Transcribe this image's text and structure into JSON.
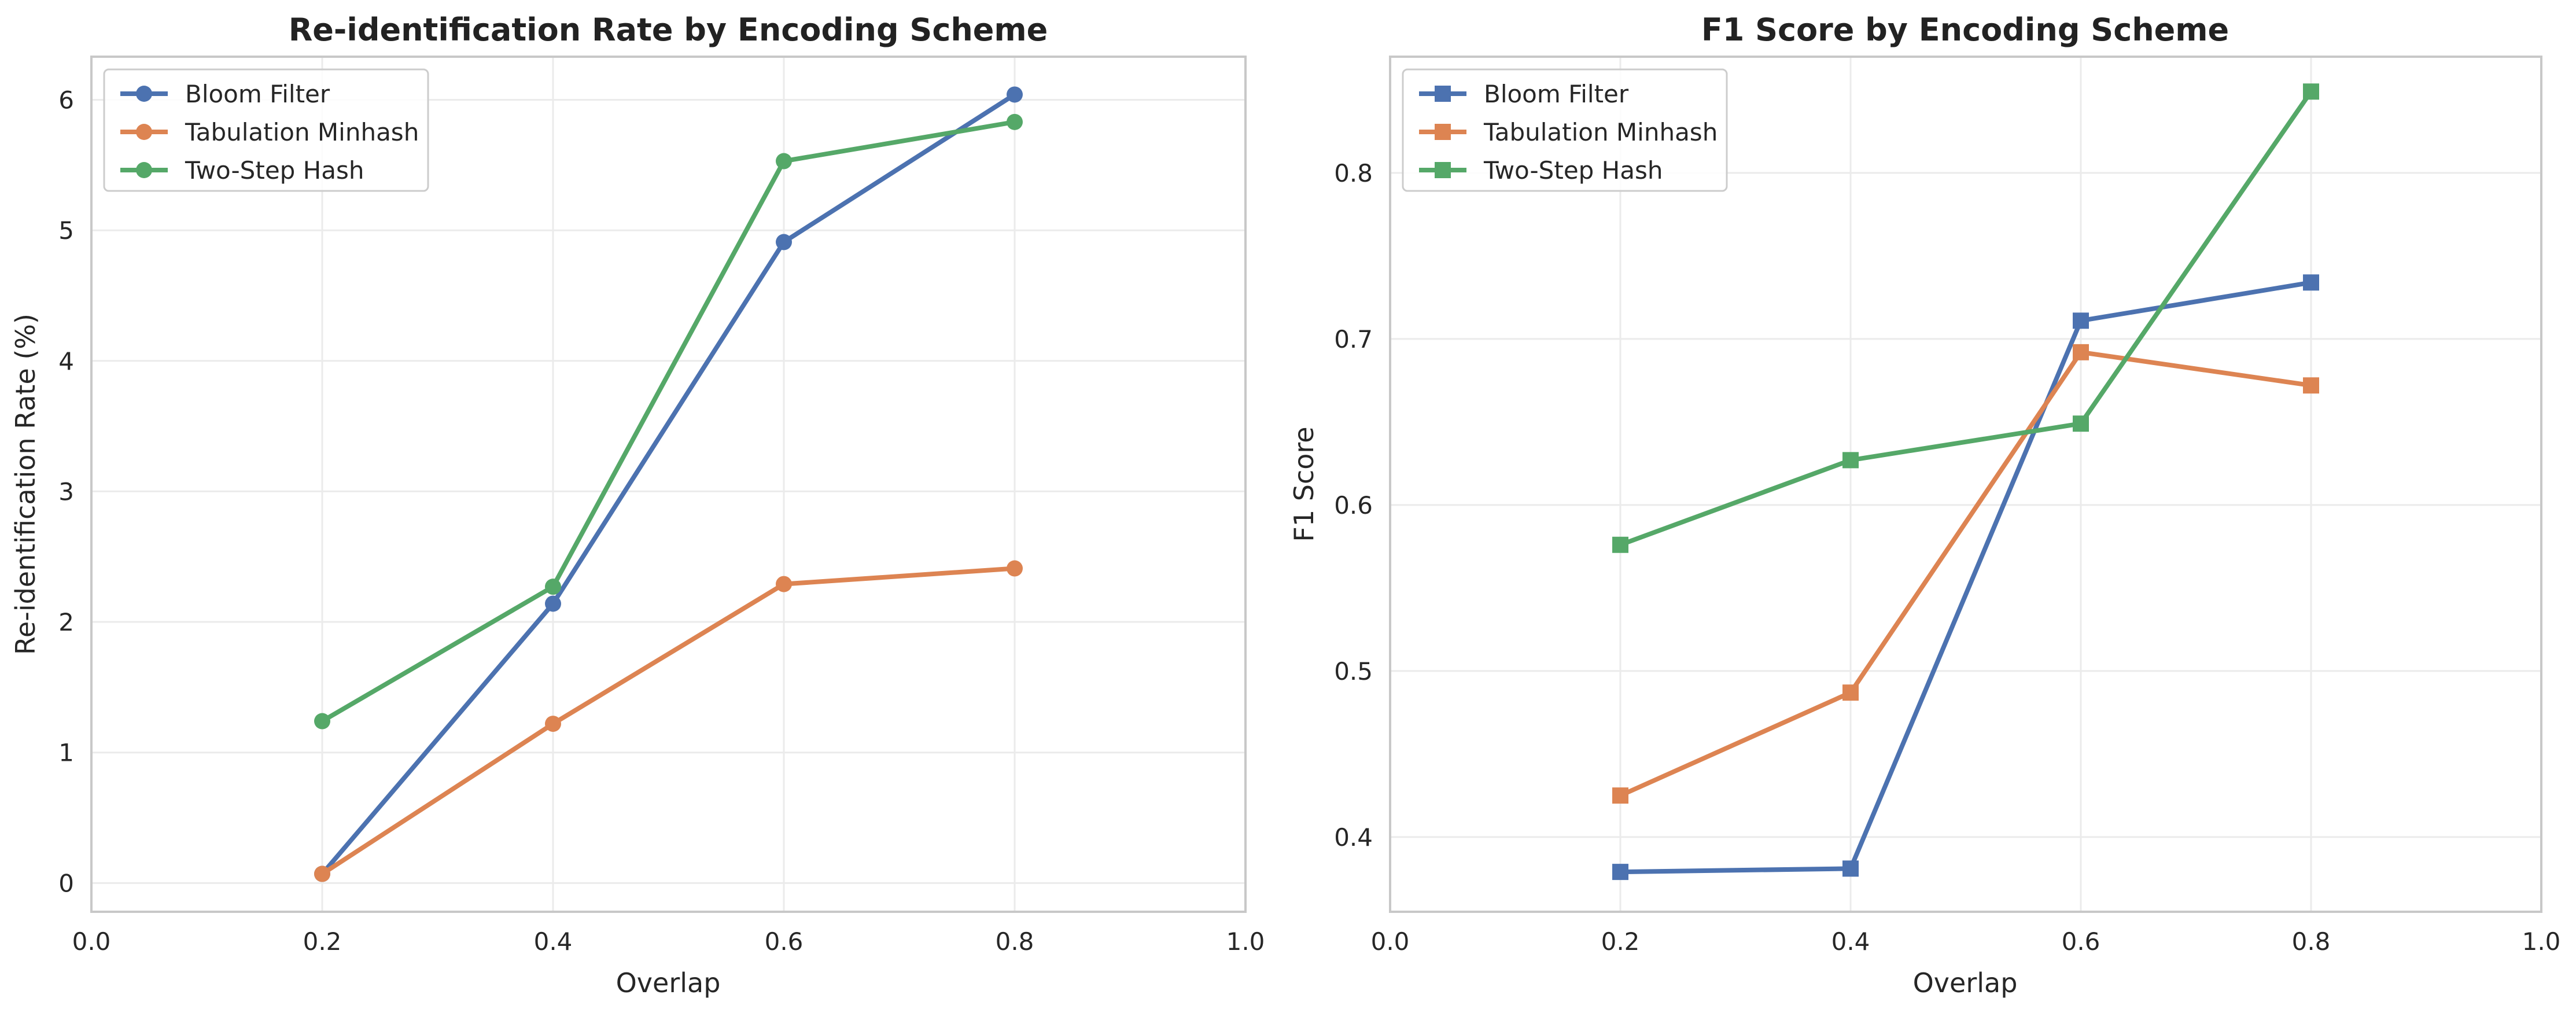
{
  "chart_data": [
    {
      "type": "line",
      "title": "Re-identification Rate by Encoding Scheme",
      "xlabel": "Overlap",
      "ylabel": "Re-identification Rate (%)",
      "xlim": [
        0.0,
        1.0
      ],
      "ylim": [
        -0.22,
        6.33
      ],
      "xticks": [
        "0.0",
        "0.2",
        "0.4",
        "0.6",
        "0.8",
        "1.0"
      ],
      "yticks": [
        "0",
        "1",
        "2",
        "3",
        "4",
        "5",
        "6"
      ],
      "grid": true,
      "legend_position": "top-left",
      "marker": "circle",
      "x": [
        0.2,
        0.4,
        0.6,
        0.8
      ],
      "series": [
        {
          "name": "Bloom Filter",
          "color": "#4c72b0",
          "values": [
            0.07,
            2.14,
            4.91,
            6.04
          ]
        },
        {
          "name": "Tabulation Minhash",
          "color": "#dd8452",
          "values": [
            0.07,
            1.22,
            2.29,
            2.41
          ]
        },
        {
          "name": "Two-Step Hash",
          "color": "#55a868",
          "values": [
            1.24,
            2.27,
            5.53,
            5.83
          ]
        }
      ]
    },
    {
      "type": "line",
      "title": "F1 Score by Encoding Scheme",
      "xlabel": "Overlap",
      "ylabel": "F1 Score",
      "xlim": [
        0.0,
        1.0
      ],
      "ylim": [
        0.355,
        0.87
      ],
      "xticks": [
        "0.0",
        "0.2",
        "0.4",
        "0.6",
        "0.8",
        "1.0"
      ],
      "yticks": [
        "0.4",
        "0.5",
        "0.6",
        "0.7",
        "0.8"
      ],
      "grid": true,
      "legend_position": "top-left",
      "marker": "square",
      "x": [
        0.2,
        0.4,
        0.6,
        0.8
      ],
      "series": [
        {
          "name": "Bloom Filter",
          "color": "#4c72b0",
          "values": [
            0.379,
            0.381,
            0.711,
            0.734
          ]
        },
        {
          "name": "Tabulation Minhash",
          "color": "#dd8452",
          "values": [
            0.425,
            0.487,
            0.692,
            0.672
          ]
        },
        {
          "name": "Two-Step Hash",
          "color": "#55a868",
          "values": [
            0.576,
            0.627,
            0.649,
            0.849
          ]
        }
      ]
    }
  ]
}
